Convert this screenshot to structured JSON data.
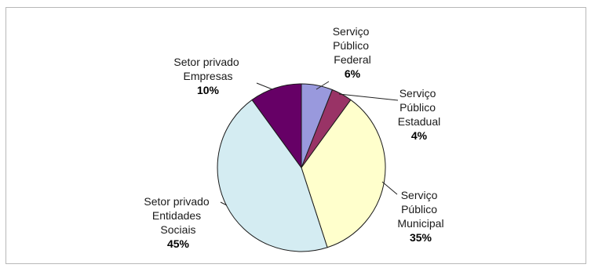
{
  "chart_data": {
    "type": "pie",
    "slices": [
      {
        "label": [
          "Serviço",
          "Público",
          "Federal"
        ],
        "value": 6,
        "value_label": "6%",
        "color": "#9999dd"
      },
      {
        "label": [
          "Serviço",
          "Público",
          "Estadual"
        ],
        "value": 4,
        "value_label": "4%",
        "color": "#993366"
      },
      {
        "label": [
          "Serviço",
          "Público",
          "Municipal"
        ],
        "value": 35,
        "value_label": "35%",
        "color": "#ffffcc"
      },
      {
        "label": [
          "Setor privado",
          "Entidades",
          "Sociais"
        ],
        "value": 45,
        "value_label": "45%",
        "color": "#d4ecf2"
      },
      {
        "label": [
          "Setor privado",
          "Empresas"
        ],
        "value": 10,
        "value_label": "10%",
        "color": "#660066"
      }
    ],
    "start_angle": "12 o'clock",
    "direction": "clockwise",
    "legend": "none",
    "labels": "outside with leader lines"
  }
}
